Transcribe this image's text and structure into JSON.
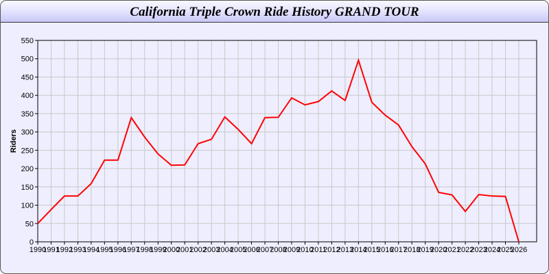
{
  "chart_data": {
    "type": "line",
    "title": "California Triple Crown Ride History GRAND TOUR",
    "xlabel": "",
    "ylabel": "Riders",
    "ylim": [
      0,
      550
    ],
    "yticks": [
      0,
      50,
      100,
      150,
      200,
      250,
      300,
      350,
      400,
      450,
      500,
      550
    ],
    "grid": true,
    "line_color": "#ff0000",
    "x": [
      1990,
      1991,
      1992,
      1993,
      1994,
      1995,
      1996,
      1997,
      1998,
      1999,
      2000,
      2001,
      2002,
      2003,
      2004,
      2005,
      2006,
      2007,
      2008,
      2009,
      2010,
      2011,
      2012,
      2013,
      2014,
      2015,
      2016,
      2017,
      2018,
      2019,
      2020,
      2021,
      2022,
      2023,
      2024,
      2025,
      2026
    ],
    "series": [
      {
        "values": [
          50,
          88,
          125,
          125,
          159,
          223,
          223,
          339,
          286,
          240,
          209,
          210,
          268,
          280,
          341,
          307,
          268,
          339,
          340,
          393,
          374,
          383,
          412,
          386,
          496,
          381,
          346,
          319,
          260,
          213,
          135,
          128,
          83,
          129,
          125,
          124,
          0
        ]
      }
    ]
  }
}
